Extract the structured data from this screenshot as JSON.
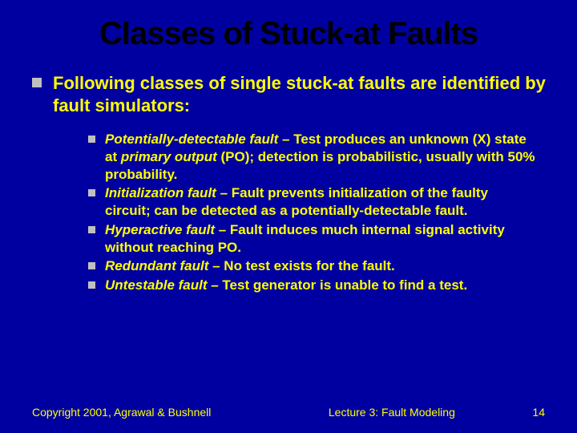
{
  "slide": {
    "title": "Classes of Stuck-at Faults",
    "background_color": "#0000a0",
    "title_color": "#000000",
    "text_color": "#ffff00",
    "bullet_color": "#c0c0c0",
    "main_bullet": "Following classes of single stuck-at faults are identified by fault simulators:",
    "items": [
      {
        "term": "Potentially-detectable fault",
        "desc_pre": " – Test produces an unknown (X) state at ",
        "emph": "primary output",
        "desc_post": " (PO); detection is  probabilistic, usually with 50% probability."
      },
      {
        "term": "Initialization fault",
        "desc_pre": " – Fault prevents initialization of the faulty circuit; can be detected as a potentially-detectable fault.",
        "emph": "",
        "desc_post": ""
      },
      {
        "term": "Hyperactive fault",
        "desc_pre": " – Fault induces much internal signal activity without reaching PO.",
        "emph": "",
        "desc_post": ""
      },
      {
        "term": "Redundant fault",
        "desc_pre": " – No test exists for the fault.",
        "emph": "",
        "desc_post": ""
      },
      {
        "term": "Untestable fault",
        "desc_pre": " – Test generator is unable to find a test.",
        "emph": "",
        "desc_post": ""
      }
    ],
    "footer": {
      "copyright": "Copyright 2001, Agrawal & Bushnell",
      "lecture": "Lecture 3: Fault Modeling",
      "page": "14"
    }
  }
}
